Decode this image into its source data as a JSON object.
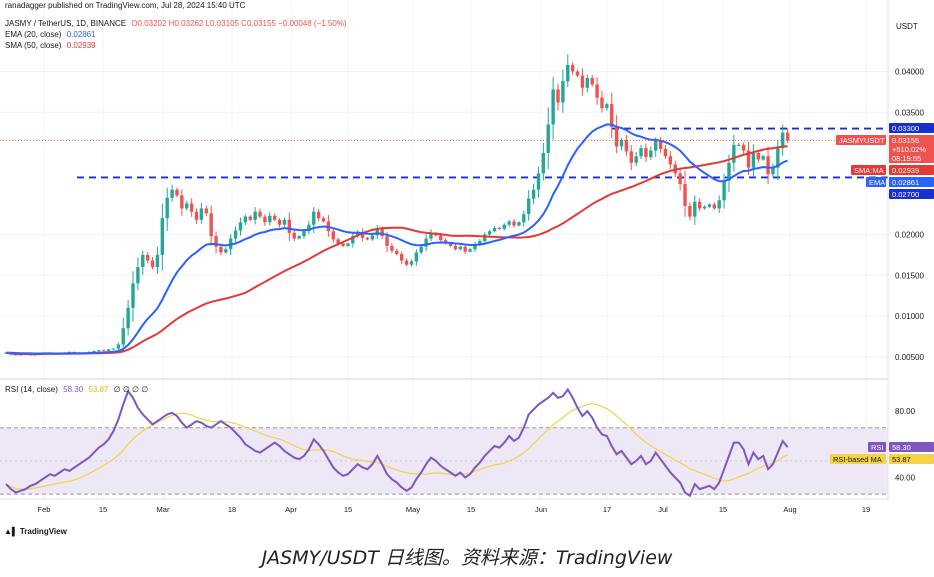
{
  "header": {
    "publisher": "ranadagger published on TradingView.com, Jul 28, 2024 15:40 UTC",
    "symbol": "JASMY / TetherUS, 1D, BINANCE",
    "ohlc": "O0.03202 H0.03262 L0.03105 C0.03155 −0.00048 (−1.50%)",
    "ema_label": "EMA (20, close)",
    "ema_value": "0.02861",
    "sma_label": "SMA (50, close)",
    "sma_value": "0.02939",
    "rsi_label": "RSI (14, close)",
    "rsi_value": "58.30",
    "rsi_ma_value": "53.87",
    "rsi_extra": "∅ ∅ ∅ ∅"
  },
  "currency": "USDT",
  "caption": "JASMY/USDT 日线图。资料来源：TradingView",
  "brand": "TradingView",
  "colors": {
    "up": "#26a69a",
    "down": "#ef5350",
    "ema": "#2962ff",
    "sma": "#e53935",
    "rsi": "#7e57c2",
    "rsi_ma": "#f5d14a",
    "level": "#1a2fd1",
    "rsi_band": "#ede7f6"
  },
  "price_labels": {
    "symbol_tag": "JASMYUSDT",
    "last_price": "0.03155",
    "change": "+510.02%",
    "countdown": "08:19:55",
    "sma_tag": "SMA:MA",
    "sma_price": "0.02939",
    "ema_tag": "EMA",
    "ema_price": "0.02861",
    "level_high": "0.03300",
    "level_low": "0.02700"
  },
  "rsi_labels": {
    "rsi_tag": "RSI",
    "rsi_price": "58.30",
    "ma_tag": "RSI-based MA",
    "ma_price": "53.87"
  },
  "chart_data": {
    "type": "candlestick",
    "title": "JASMY / TetherUS, 1D, BINANCE",
    "y_axis": {
      "ticks": [
        "0.00500",
        "0.01000",
        "0.01500",
        "0.02000",
        "0.03500",
        "0.04000"
      ],
      "ylim": [
        0.0035,
        0.0465
      ]
    },
    "rsi_axis": {
      "ticks": [
        "40.00",
        "80.00"
      ],
      "ylim": [
        20,
        100
      ],
      "band": [
        30,
        70
      ]
    },
    "x_axis": {
      "ticks": [
        "Feb",
        "15",
        "Mar",
        "18",
        "Apr",
        "15",
        "May",
        "15",
        "Jun",
        "17",
        "Jul",
        "15",
        "Aug",
        "19"
      ]
    },
    "horizontal_levels": [
      0.033,
      0.027
    ],
    "last_close": 0.03155,
    "close_series": [
      0.0055,
      0.0053,
      0.0052,
      0.0053,
      0.0054,
      0.0052,
      0.0053,
      0.0054,
      0.0055,
      0.0054,
      0.0053,
      0.0054,
      0.0055,
      0.0056,
      0.0055,
      0.0054,
      0.0055,
      0.0056,
      0.0057,
      0.0058,
      0.0057,
      0.0059,
      0.006,
      0.0065,
      0.0085,
      0.011,
      0.014,
      0.016,
      0.0175,
      0.0168,
      0.016,
      0.0175,
      0.022,
      0.0245,
      0.0255,
      0.0248,
      0.0232,
      0.0238,
      0.0228,
      0.0218,
      0.0232,
      0.0226,
      0.0198,
      0.0185,
      0.0178,
      0.0182,
      0.0195,
      0.0205,
      0.0215,
      0.0222,
      0.0218,
      0.0228,
      0.0222,
      0.0215,
      0.0223,
      0.0218,
      0.0212,
      0.0218,
      0.0202,
      0.0195,
      0.0198,
      0.0204,
      0.0212,
      0.0228,
      0.022,
      0.0216,
      0.0204,
      0.0194,
      0.0189,
      0.0186,
      0.0189,
      0.0198,
      0.0203,
      0.0196,
      0.0194,
      0.0199,
      0.0207,
      0.0198,
      0.0186,
      0.018,
      0.0176,
      0.0168,
      0.0163,
      0.0167,
      0.0178,
      0.0185,
      0.0195,
      0.0202,
      0.0199,
      0.0193,
      0.0189,
      0.0186,
      0.0182,
      0.0185,
      0.0179,
      0.0182,
      0.0188,
      0.0192,
      0.02,
      0.0204,
      0.0208,
      0.0207,
      0.0212,
      0.0216,
      0.0211,
      0.0215,
      0.0225,
      0.0244,
      0.0255,
      0.0275,
      0.03,
      0.0335,
      0.0378,
      0.0362,
      0.0388,
      0.0408,
      0.04,
      0.0395,
      0.038,
      0.0392,
      0.0384,
      0.0368,
      0.0355,
      0.036,
      0.0332,
      0.0308,
      0.0316,
      0.0302,
      0.0288,
      0.0296,
      0.0306,
      0.0295,
      0.0303,
      0.0315,
      0.0305,
      0.0296,
      0.0286,
      0.0275,
      0.0262,
      0.0235,
      0.0222,
      0.024,
      0.0232,
      0.0234,
      0.0237,
      0.0232,
      0.0242,
      0.0266,
      0.0288,
      0.031,
      0.031,
      0.0303,
      0.0282,
      0.03,
      0.0292,
      0.0296,
      0.0274,
      0.0282,
      0.0306,
      0.0325,
      0.03155
    ],
    "rsi_series": [
      36,
      33,
      31,
      32,
      33,
      35,
      36,
      38,
      40,
      42,
      41,
      43,
      45,
      44,
      46,
      48,
      50,
      52,
      55,
      58,
      60,
      63,
      68,
      75,
      84,
      92,
      88,
      82,
      78,
      75,
      72,
      74,
      76,
      78,
      79,
      77,
      73,
      70,
      72,
      74,
      73,
      71,
      70,
      72,
      74,
      72,
      70,
      67,
      64,
      60,
      58,
      56,
      55,
      57,
      59,
      61,
      59,
      56,
      54,
      52,
      51,
      53,
      57,
      63,
      60,
      56,
      51,
      46,
      43,
      41,
      42,
      45,
      48,
      46,
      45,
      48,
      53,
      48,
      42,
      39,
      37,
      34,
      32,
      34,
      39,
      43,
      48,
      52,
      50,
      47,
      45,
      43,
      41,
      43,
      40,
      42,
      46,
      49,
      53,
      56,
      59,
      58,
      61,
      65,
      62,
      64,
      70,
      78,
      81,
      84,
      86,
      88,
      91,
      88,
      89,
      93,
      88,
      82,
      77,
      80,
      76,
      70,
      66,
      65,
      59,
      54,
      56,
      52,
      48,
      50,
      53,
      48,
      50,
      55,
      51,
      47,
      43,
      40,
      37,
      31,
      29,
      36,
      33,
      34,
      35,
      33,
      37,
      45,
      53,
      61,
      61,
      57,
      48,
      55,
      51,
      53,
      45,
      48,
      55,
      62,
      58.3
    ],
    "rsi_ma_last": 53.87
  }
}
